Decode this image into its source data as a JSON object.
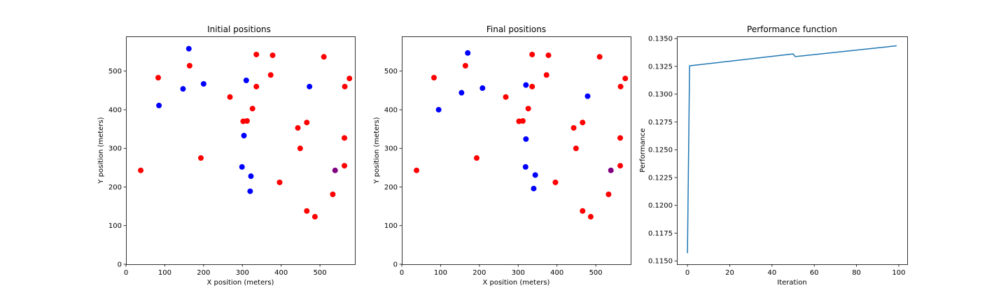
{
  "colors": {
    "red_points": "#ff0000",
    "blue_points": "#0000ff",
    "highlight_point": "#800080",
    "performance_line": "#1f77b4",
    "axes": "#000000"
  },
  "chart_data": [
    {
      "type": "scatter",
      "title": "Initial positions",
      "xlabel": "X position (meters)",
      "ylabel": "Y position (meters)",
      "xlim": [
        0,
        590
      ],
      "ylim": [
        0,
        590
      ],
      "xticks": [
        0,
        100,
        200,
        300,
        400,
        500
      ],
      "yticks": [
        0,
        100,
        200,
        300,
        400,
        500
      ],
      "grid": false,
      "series": [
        {
          "color": "#ff0000",
          "points": [
            [
              83,
              483
            ],
            [
              164,
              514
            ],
            [
              38,
              243
            ],
            [
              193,
              275
            ],
            [
              268,
              433
            ],
            [
              336,
              543
            ],
            [
              378,
              541
            ],
            [
              373,
              490
            ],
            [
              336,
              460
            ],
            [
              326,
              403
            ],
            [
              302,
              370
            ],
            [
              312,
              371
            ],
            [
              396,
              212
            ],
            [
              443,
              353
            ],
            [
              449,
              300
            ],
            [
              466,
              367
            ],
            [
              510,
              537
            ],
            [
              576,
              481
            ],
            [
              564,
              460
            ],
            [
              563,
              327
            ],
            [
              563,
              255
            ],
            [
              533,
              181
            ],
            [
              466,
              138
            ],
            [
              487,
              123
            ]
          ]
        },
        {
          "color": "#0000ff",
          "points": [
            [
              162,
              558
            ],
            [
              85,
              411
            ],
            [
              147,
              454
            ],
            [
              200,
              467
            ],
            [
              310,
              476
            ],
            [
              473,
              460
            ],
            [
              304,
              333
            ],
            [
              299,
              252
            ],
            [
              322,
              228
            ],
            [
              320,
              189
            ]
          ]
        },
        {
          "color": "#800080",
          "points": [
            [
              539,
              243
            ]
          ]
        }
      ]
    },
    {
      "type": "scatter",
      "title": "Final positions",
      "xlabel": "X position (meters)",
      "ylabel": "Y position (meters)",
      "xlim": [
        0,
        590
      ],
      "ylim": [
        0,
        590
      ],
      "xticks": [
        0,
        100,
        200,
        300,
        400,
        500
      ],
      "yticks": [
        0,
        100,
        200,
        300,
        400,
        500
      ],
      "grid": false,
      "series": [
        {
          "color": "#ff0000",
          "points": [
            [
              83,
              483
            ],
            [
              164,
              514
            ],
            [
              38,
              243
            ],
            [
              193,
              275
            ],
            [
              268,
              433
            ],
            [
              336,
              543
            ],
            [
              378,
              541
            ],
            [
              373,
              490
            ],
            [
              336,
              460
            ],
            [
              326,
              403
            ],
            [
              302,
              370
            ],
            [
              312,
              371
            ],
            [
              396,
              212
            ],
            [
              443,
              353
            ],
            [
              449,
              300
            ],
            [
              466,
              367
            ],
            [
              510,
              537
            ],
            [
              576,
              481
            ],
            [
              564,
              460
            ],
            [
              563,
              327
            ],
            [
              563,
              255
            ],
            [
              533,
              181
            ],
            [
              466,
              138
            ],
            [
              487,
              123
            ]
          ]
        },
        {
          "color": "#0000ff",
          "points": [
            [
              170,
              547
            ],
            [
              95,
              400
            ],
            [
              154,
              444
            ],
            [
              208,
              456
            ],
            [
              320,
              464
            ],
            [
              479,
              435
            ],
            [
              320,
              324
            ],
            [
              319,
              252
            ],
            [
              344,
              231
            ],
            [
              340,
              196
            ]
          ]
        },
        {
          "color": "#800080",
          "points": [
            [
              539,
              243
            ]
          ]
        }
      ]
    },
    {
      "type": "line",
      "title": "Performance function",
      "xlabel": "Iteration",
      "ylabel": "Performance",
      "xlim": [
        -5,
        104
      ],
      "ylim": [
        0.1147,
        0.1352
      ],
      "xticks": [
        0,
        20,
        40,
        60,
        80,
        100
      ],
      "yticks": [
        0.115,
        0.1175,
        0.12,
        0.1225,
        0.125,
        0.1275,
        0.13,
        0.1325,
        0.135
      ],
      "ytick_labels": [
        "0.1150",
        "0.1175",
        "0.1200",
        "0.1225",
        "0.1250",
        "0.1275",
        "0.1300",
        "0.1325",
        "0.1350"
      ],
      "grid": false,
      "series": [
        {
          "color": "#1f77b4",
          "x": [
            0,
            1,
            50,
            51,
            99
          ],
          "y": [
            0.1157,
            0.13255,
            0.13362,
            0.13338,
            0.13435
          ]
        }
      ]
    }
  ]
}
